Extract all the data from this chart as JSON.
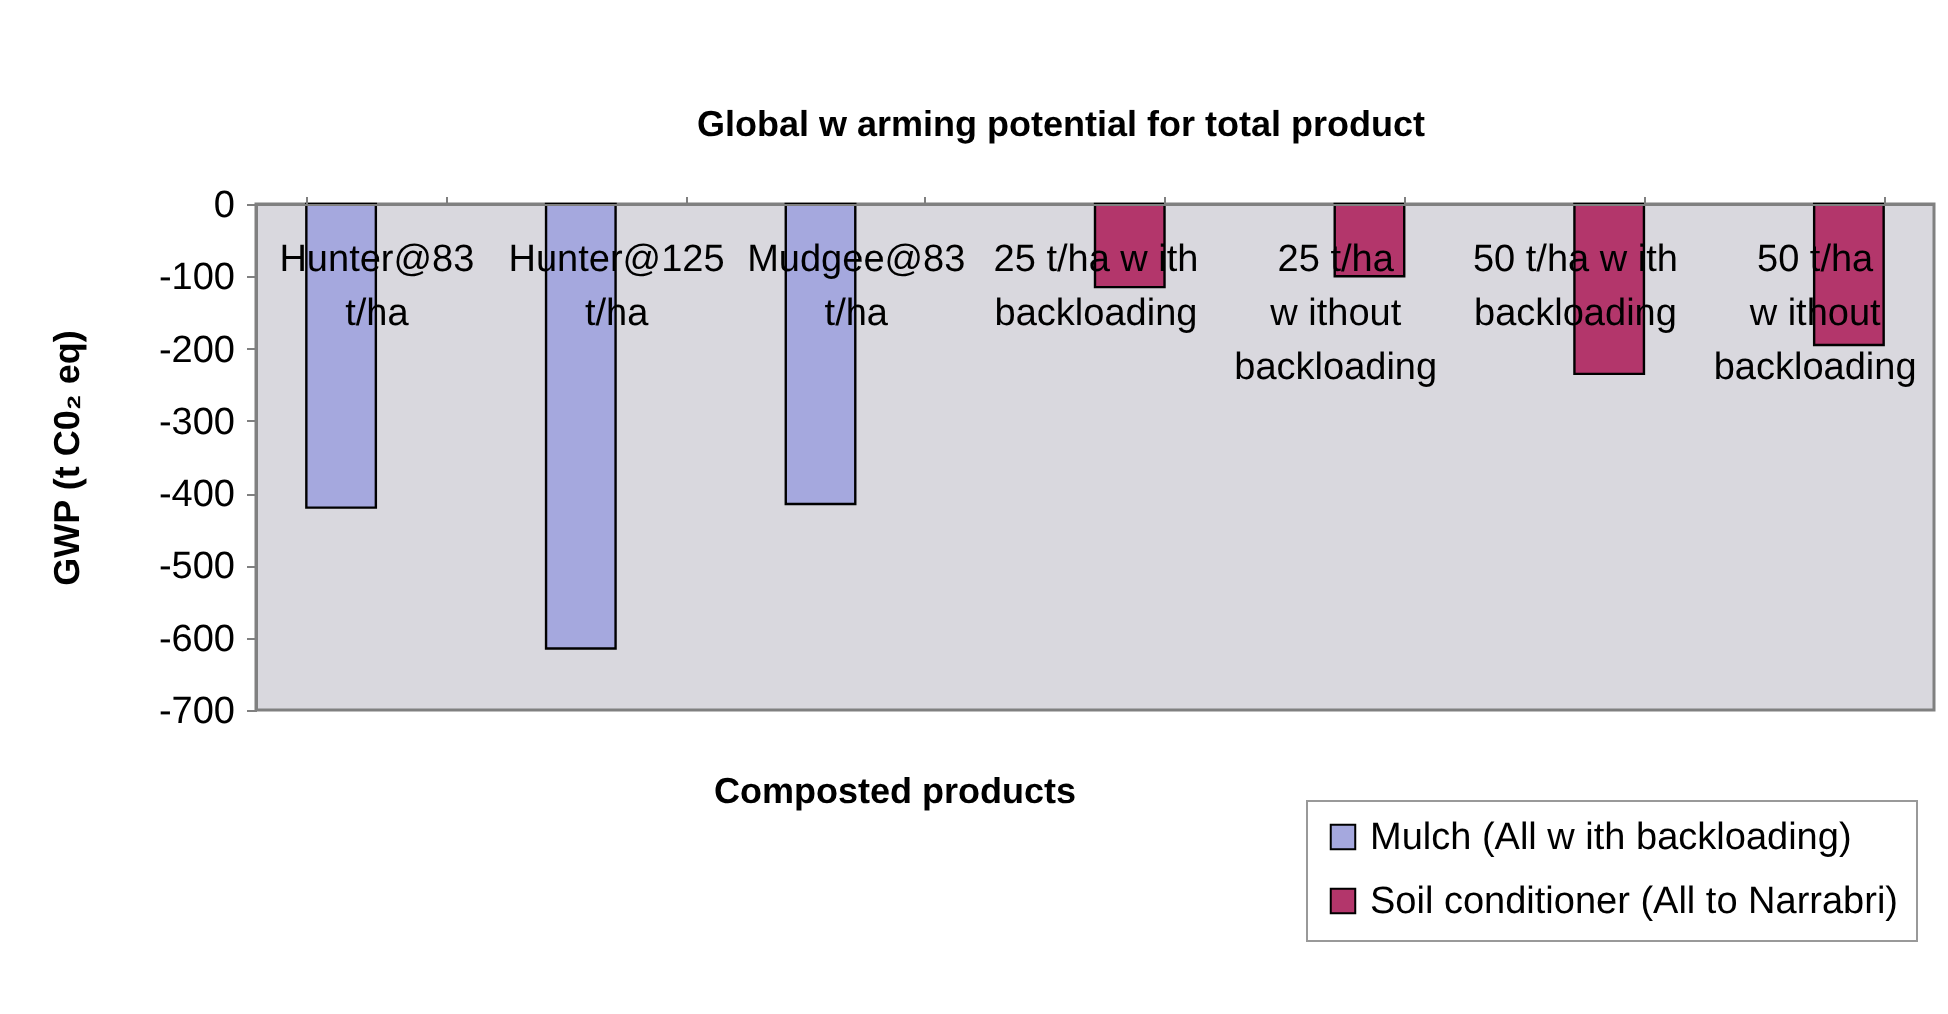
{
  "chart_data": {
    "type": "bar",
    "title": "Global w arming potential for total product",
    "xlabel": "Composted products",
    "ylabel": "GWP (t C0₂ eq)",
    "categories": [
      "Hunter@83 t/ha",
      "Hunter@125 t/ha",
      "Mudgee@83 t/ha",
      "25 t/ha w ith backloading",
      "25 t/ha w ithout backloading",
      "50 t/ha w ith backloading",
      "50 t/ha w ithout backloading"
    ],
    "series": [
      {
        "name": "Mulch (All w ith backloading)",
        "color": "#a5a8de",
        "values": [
          -420,
          -615,
          -415,
          null,
          null,
          null,
          null
        ]
      },
      {
        "name": "Soil conditioner (All to Narrabri)",
        "color": "#b3366b",
        "values": [
          null,
          null,
          null,
          -115,
          -100,
          -235,
          -195
        ]
      }
    ],
    "ylim": [
      -700,
      0
    ],
    "yticks": [
      -700,
      -600,
      -500,
      -400,
      -300,
      -200,
      -100,
      0
    ],
    "grid": false,
    "legend": "bottom right"
  }
}
